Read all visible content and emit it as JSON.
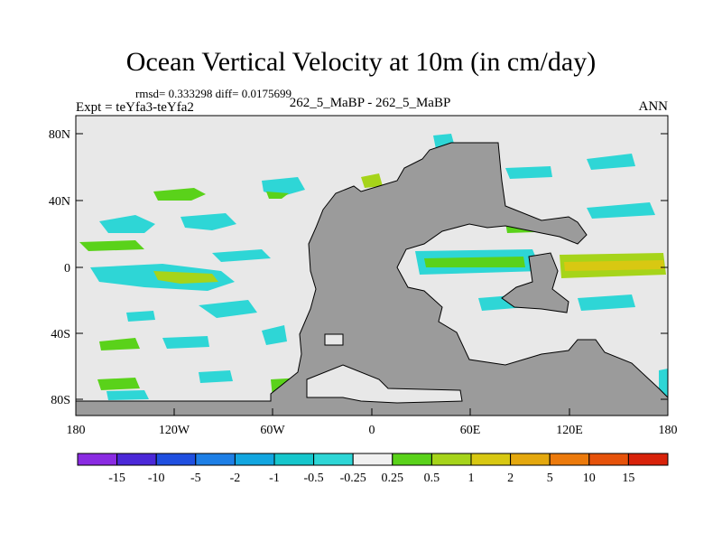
{
  "title": "Ocean Vertical Velocity at 10m (in cm/day)",
  "stats": "rmsd= 0.333298 diff= 0.0175699",
  "expt": "Expt = teYfa3-teYfa2",
  "center_label": "262_5_MaBP - 262_5_MaBP",
  "season": "ANN",
  "lat_ticks": [
    "80N",
    "40N",
    "0",
    "40S",
    "80S"
  ],
  "lon_ticks": [
    "180",
    "120W",
    "60W",
    "0",
    "60E",
    "120E",
    "180"
  ],
  "colorbar": {
    "colors": [
      "#8a2be2",
      "#4b28d8",
      "#1f4fe0",
      "#1e7fe6",
      "#12a6e0",
      "#16c6cc",
      "#2ed6d6",
      "#f0f0f0",
      "#5ad21a",
      "#a6d41a",
      "#d8c812",
      "#e4a80e",
      "#ec7a0c",
      "#e6520a",
      "#d8220a"
    ],
    "labels": [
      "-15",
      "-10",
      "-5",
      "-2",
      "-1",
      "-0.5",
      "-0.25",
      "0.25",
      "0.5",
      "1",
      "2",
      "5",
      "10",
      "15"
    ]
  },
  "colors": {
    "land": "#9b9b9b",
    "ocean": "#e8e8e8"
  }
}
